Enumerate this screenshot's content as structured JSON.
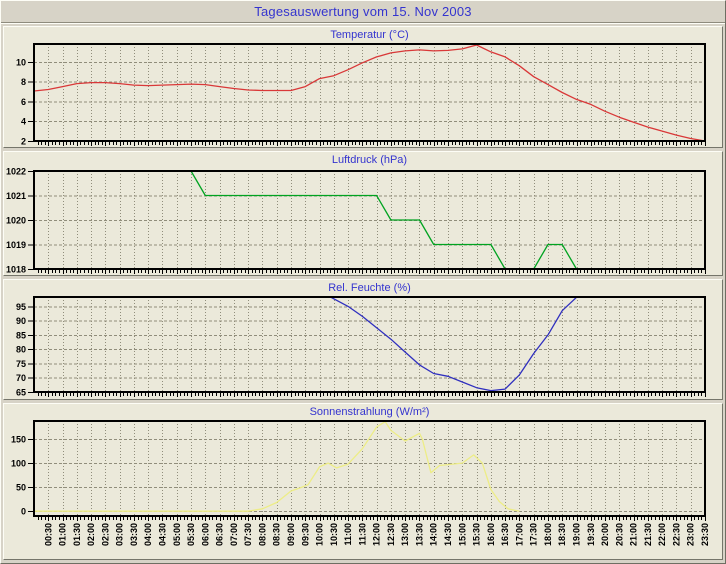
{
  "page_title": "Tagesauswertung vom 15. Nov 2003",
  "style": {
    "title_color": "#3434cf",
    "grid_color": "#908d7b",
    "frame_color": "#000000",
    "label_color": "#000000",
    "page_bg": "#d7d3c7",
    "panel_bg": "#ebe9da"
  },
  "x_axis": {
    "start_hour": 0,
    "end_hour": 23.5,
    "gridline_interval_hours": 0.5,
    "minor_tick_interval_hours": 0.125,
    "labels": [
      "00:30",
      "01:00",
      "01:30",
      "02:00",
      "02:30",
      "03:00",
      "03:30",
      "04:00",
      "04:30",
      "05:00",
      "05:30",
      "06:00",
      "06:30",
      "07:00",
      "07:30",
      "08:00",
      "08:30",
      "09:00",
      "09:30",
      "10:00",
      "10:30",
      "11:00",
      "11:30",
      "12:00",
      "12:30",
      "13:00",
      "13:30",
      "14:00",
      "14:30",
      "15:00",
      "15:30",
      "16:00",
      "16:30",
      "17:00",
      "17:30",
      "18:00",
      "18:30",
      "19:00",
      "19:30",
      "20:00",
      "20:30",
      "21:00",
      "21:30",
      "22:00",
      "22:30",
      "23:00",
      "23:30"
    ]
  },
  "chart_data": [
    {
      "type": "line",
      "title": "Temperatur (°C)",
      "color": "#d93838",
      "ylim": [
        2,
        11.8
      ],
      "yticks": [
        2,
        4,
        6,
        8,
        10
      ],
      "grid": true,
      "legend": "none",
      "series": [
        {
          "name": "Temperatur",
          "points": [
            [
              0,
              7.05
            ],
            [
              0.5,
              7.2
            ],
            [
              1,
              7.5
            ],
            [
              1.5,
              7.8
            ],
            [
              2,
              7.9
            ],
            [
              2.5,
              7.9
            ],
            [
              3,
              7.8
            ],
            [
              3.5,
              7.65
            ],
            [
              4,
              7.6
            ],
            [
              4.5,
              7.65
            ],
            [
              5,
              7.7
            ],
            [
              5.5,
              7.75
            ],
            [
              6,
              7.7
            ],
            [
              6.5,
              7.5
            ],
            [
              7,
              7.3
            ],
            [
              7.5,
              7.15
            ],
            [
              8,
              7.1
            ],
            [
              8.5,
              7.1
            ],
            [
              9,
              7.1
            ],
            [
              9.5,
              7.5
            ],
            [
              10,
              8.3
            ],
            [
              10.5,
              8.6
            ],
            [
              11,
              9.2
            ],
            [
              11.5,
              9.9
            ],
            [
              12,
              10.5
            ],
            [
              12.5,
              10.9
            ],
            [
              13,
              11.1
            ],
            [
              13.5,
              11.2
            ],
            [
              14,
              11.1
            ],
            [
              14.5,
              11.15
            ],
            [
              15,
              11.3
            ],
            [
              15.5,
              11.7
            ],
            [
              16,
              11.0
            ],
            [
              16.5,
              10.5
            ],
            [
              17,
              9.6
            ],
            [
              17.5,
              8.5
            ],
            [
              18,
              7.7
            ],
            [
              18.5,
              6.9
            ],
            [
              19,
              6.2
            ],
            [
              19.5,
              5.7
            ],
            [
              20,
              5.0
            ],
            [
              20.5,
              4.4
            ],
            [
              21,
              3.9
            ],
            [
              21.5,
              3.4
            ],
            [
              22,
              3.0
            ],
            [
              22.5,
              2.6
            ],
            [
              23,
              2.25
            ],
            [
              23.5,
              2.0
            ]
          ]
        }
      ]
    },
    {
      "type": "line",
      "title": "Luftdruck (hPa)",
      "color": "#00a321",
      "ylim": [
        1018,
        1022
      ],
      "yticks": [
        1018,
        1019,
        1020,
        1021,
        1022
      ],
      "grid": true,
      "legend": "none",
      "series": [
        {
          "name": "Luftdruck",
          "points": [
            [
              5.5,
              1022
            ],
            [
              6,
              1021
            ],
            [
              12,
              1021
            ],
            [
              12.5,
              1020
            ],
            [
              13.5,
              1020
            ],
            [
              14,
              1019
            ],
            [
              16,
              1019
            ],
            [
              16.5,
              1018
            ],
            [
              17.5,
              1018
            ],
            [
              18,
              1019
            ],
            [
              18.5,
              1019
            ],
            [
              19,
              1018
            ]
          ]
        }
      ]
    },
    {
      "type": "line",
      "title": "Rel. Feuchte (%)",
      "color": "#2f2fbf",
      "ylim": [
        65,
        98.3
      ],
      "yticks": [
        65,
        70,
        75,
        80,
        85,
        90,
        95
      ],
      "grid": true,
      "legend": "none",
      "series": [
        {
          "name": "Rel. Feuchte",
          "points": [
            [
              10.4,
              98.2
            ],
            [
              11,
              95
            ],
            [
              11.5,
              91.5
            ],
            [
              12,
              87.5
            ],
            [
              12.5,
              83.5
            ],
            [
              13,
              79
            ],
            [
              13.5,
              74.5
            ],
            [
              14,
              71.5
            ],
            [
              14.5,
              70.5
            ],
            [
              15,
              68.5
            ],
            [
              15.5,
              66.5
            ],
            [
              16,
              65.5
            ],
            [
              16.5,
              66
            ],
            [
              17,
              71
            ],
            [
              17.5,
              78.5
            ],
            [
              18,
              85
            ],
            [
              18.5,
              93.5
            ],
            [
              19,
              98.2
            ]
          ]
        }
      ]
    },
    {
      "type": "line",
      "title": "Sonnenstrahlung (W/m²)",
      "color": "#eded86",
      "ylim": [
        -10,
        187.5
      ],
      "yticks": [
        0,
        50,
        100,
        150
      ],
      "grid": true,
      "legend": "none",
      "series": [
        {
          "name": "Sonnenstrahlung",
          "points": [
            [
              0,
              0
            ],
            [
              7.5,
              0
            ],
            [
              8,
              5
            ],
            [
              8.5,
              18
            ],
            [
              9,
              42
            ],
            [
              9.3,
              48
            ],
            [
              9.6,
              55
            ],
            [
              10,
              92
            ],
            [
              10.3,
              100
            ],
            [
              10.6,
              90
            ],
            [
              11,
              98
            ],
            [
              11.5,
              130
            ],
            [
              12,
              175
            ],
            [
              12.3,
              186
            ],
            [
              12.5,
              168
            ],
            [
              13,
              146
            ],
            [
              13.5,
              162
            ],
            [
              13.6,
              150
            ],
            [
              13.9,
              80
            ],
            [
              14.2,
              95
            ],
            [
              15,
              100
            ],
            [
              15.4,
              117
            ],
            [
              15.7,
              100
            ],
            [
              16,
              45
            ],
            [
              16.3,
              20
            ],
            [
              16.6,
              5
            ],
            [
              17,
              0
            ]
          ]
        }
      ]
    }
  ]
}
